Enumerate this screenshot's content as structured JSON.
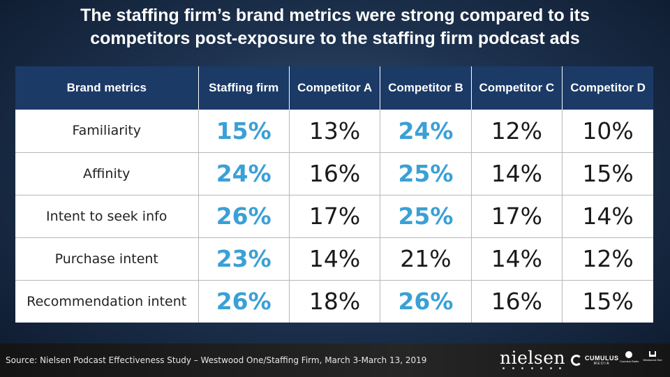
{
  "slide": {
    "title_line1": "The staffing firm’s brand metrics were strong compared to its",
    "title_line2": "competitors post-exposure to the staffing firm podcast ads"
  },
  "table": {
    "headers": [
      "Brand metrics",
      "Staffing firm",
      "Competitor A",
      "Competitor B",
      "Competitor C",
      "Competitor D"
    ],
    "highlight_color": "#3aa0d6",
    "header_bg": "#1b3a66",
    "rows": [
      {
        "metric": "Familiarity",
        "values": [
          "15%",
          "13%",
          "24%",
          "12%",
          "10%"
        ],
        "highlighted": [
          true,
          false,
          true,
          false,
          false
        ]
      },
      {
        "metric": "Affinity",
        "values": [
          "24%",
          "16%",
          "25%",
          "14%",
          "15%"
        ],
        "highlighted": [
          true,
          false,
          true,
          false,
          false
        ]
      },
      {
        "metric": "Intent to seek info",
        "values": [
          "26%",
          "17%",
          "25%",
          "17%",
          "14%"
        ],
        "highlighted": [
          true,
          false,
          true,
          false,
          false
        ]
      },
      {
        "metric": "Purchase intent",
        "values": [
          "23%",
          "14%",
          "21%",
          "14%",
          "12%"
        ],
        "highlighted": [
          true,
          false,
          false,
          false,
          false
        ]
      },
      {
        "metric": "Recommendation intent",
        "values": [
          "26%",
          "18%",
          "26%",
          "16%",
          "15%"
        ],
        "highlighted": [
          true,
          false,
          true,
          false,
          false
        ]
      }
    ]
  },
  "footer": {
    "source": "Source: Nielsen Podcast Effectiveness Study – Westwood One/Staffing Firm, March 3-March 13, 2019",
    "logos": {
      "nielsen": "nielsen",
      "cumulus": "CUMULUS",
      "cumulus_sub": "MEDIA",
      "cumulus_radio": "Cumulus Radio",
      "westwood": "Westwood One"
    }
  }
}
